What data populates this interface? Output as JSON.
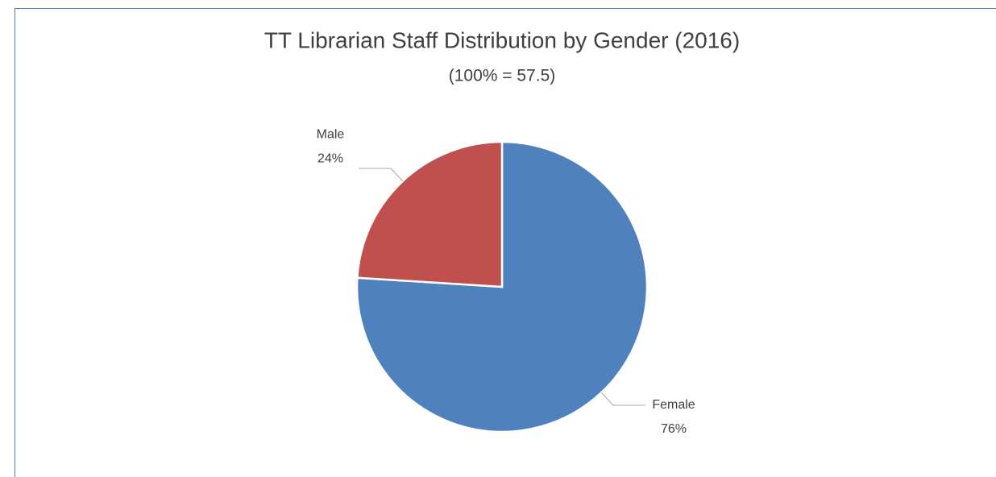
{
  "chart_data": {
    "type": "pie",
    "title": "TT Librarian Staff Distribution by Gender (2016)",
    "subtitle": "(100% = 57.5)",
    "categories": [
      "Female",
      "Male"
    ],
    "values": [
      76,
      24
    ],
    "value_labels": [
      "76%",
      "24%"
    ],
    "colors": [
      "#4f81bd",
      "#c0504d"
    ]
  }
}
